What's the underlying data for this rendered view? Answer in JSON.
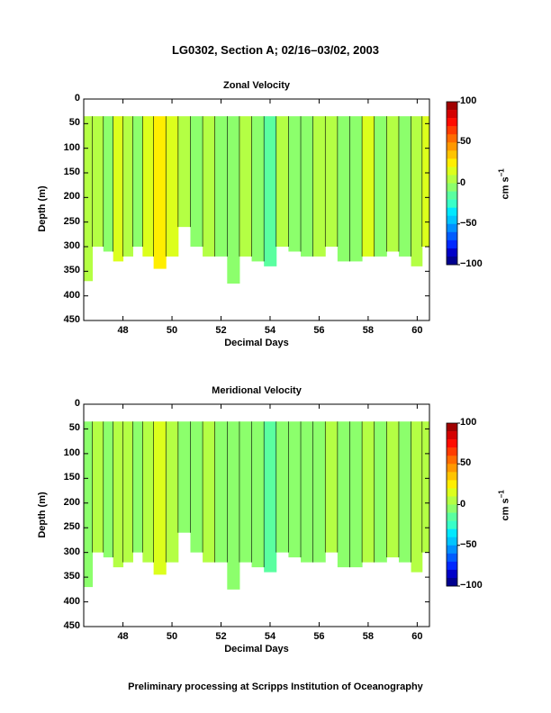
{
  "title": "LG0302, Section A; 02/16–03/02, 2003",
  "footer": "Preliminary processing at Scripps Institution of Oceanography",
  "colorbar": {
    "ticks": [
      100,
      50,
      0,
      -50,
      -100
    ],
    "tick_labels": [
      "100",
      "50",
      "0",
      "−50",
      "−100"
    ],
    "label": "cm s",
    "label_sup": "−1",
    "colors": [
      "#00008f",
      "#0000c8",
      "#0028ff",
      "#005cff",
      "#0090ff",
      "#00c4ff",
      "#00e8ff",
      "#38ffc8",
      "#5affa0",
      "#8cff6c",
      "#b4ff44",
      "#dcff1c",
      "#ffee00",
      "#ffc400",
      "#ff9800",
      "#ff6c00",
      "#ff3c00",
      "#ff0c00",
      "#d40000",
      "#a00000"
    ]
  },
  "chart_data": [
    {
      "type": "heatmap",
      "title": "Zonal Velocity",
      "xlabel": "Decimal Days",
      "ylabel": "Depth (m)",
      "xlim": [
        46.4,
        60.5
      ],
      "ylim": [
        450,
        0
      ],
      "x_ticks": [
        48,
        50,
        52,
        54,
        56,
        58,
        60
      ],
      "y_ticks": [
        0,
        50,
        100,
        150,
        200,
        250,
        300,
        350,
        400,
        450
      ],
      "clim": [
        -100,
        100
      ],
      "data_top_depth": 35,
      "x": [
        46.5,
        47.0,
        47.4,
        47.8,
        48.2,
        48.6,
        49.0,
        49.5,
        50.0,
        50.5,
        51.0,
        51.5,
        52.0,
        52.5,
        53.0,
        53.5,
        54.0,
        54.5,
        55.0,
        55.5,
        56.0,
        56.5,
        57.0,
        57.5,
        58.0,
        58.5,
        59.0,
        59.5,
        60.0,
        60.4
      ],
      "max_depth": [
        370,
        300,
        310,
        330,
        320,
        300,
        320,
        345,
        320,
        260,
        300,
        320,
        320,
        375,
        320,
        330,
        340,
        300,
        310,
        320,
        320,
        300,
        330,
        330,
        320,
        320,
        310,
        320,
        340,
        300
      ],
      "velocity": [
        5,
        8,
        -3,
        10,
        5,
        -2,
        15,
        22,
        10,
        3,
        -4,
        8,
        -5,
        -10,
        5,
        -5,
        -12,
        5,
        -3,
        -8,
        0,
        5,
        -3,
        -5,
        10,
        -8,
        5,
        -6,
        8,
        12
      ]
    },
    {
      "type": "heatmap",
      "title": "Meridional Velocity",
      "xlabel": "Decimal Days",
      "ylabel": "Depth (m)",
      "xlim": [
        46.4,
        60.5
      ],
      "ylim": [
        450,
        0
      ],
      "x_ticks": [
        48,
        50,
        52,
        54,
        56,
        58,
        60
      ],
      "y_ticks": [
        0,
        50,
        100,
        150,
        200,
        250,
        300,
        350,
        400,
        450
      ],
      "clim": [
        -100,
        100
      ],
      "data_top_depth": 35,
      "x": [
        46.5,
        47.0,
        47.4,
        47.8,
        48.2,
        48.6,
        49.0,
        49.5,
        50.0,
        50.5,
        51.0,
        51.5,
        52.0,
        52.5,
        53.0,
        53.5,
        54.0,
        54.5,
        55.0,
        55.5,
        56.0,
        56.5,
        57.0,
        57.5,
        58.0,
        58.5,
        59.0,
        59.5,
        60.0,
        60.4
      ],
      "max_depth": [
        370,
        300,
        310,
        330,
        320,
        300,
        320,
        345,
        320,
        260,
        300,
        320,
        320,
        375,
        320,
        330,
        340,
        300,
        310,
        320,
        320,
        300,
        330,
        330,
        320,
        320,
        310,
        320,
        340,
        300
      ],
      "velocity": [
        -5,
        3,
        -8,
        5,
        0,
        -6,
        8,
        12,
        5,
        -4,
        -8,
        3,
        -6,
        -10,
        -3,
        -8,
        -12,
        -4,
        -8,
        -10,
        -5,
        0,
        -8,
        -6,
        5,
        -8,
        0,
        -4,
        3,
        6
      ]
    }
  ]
}
